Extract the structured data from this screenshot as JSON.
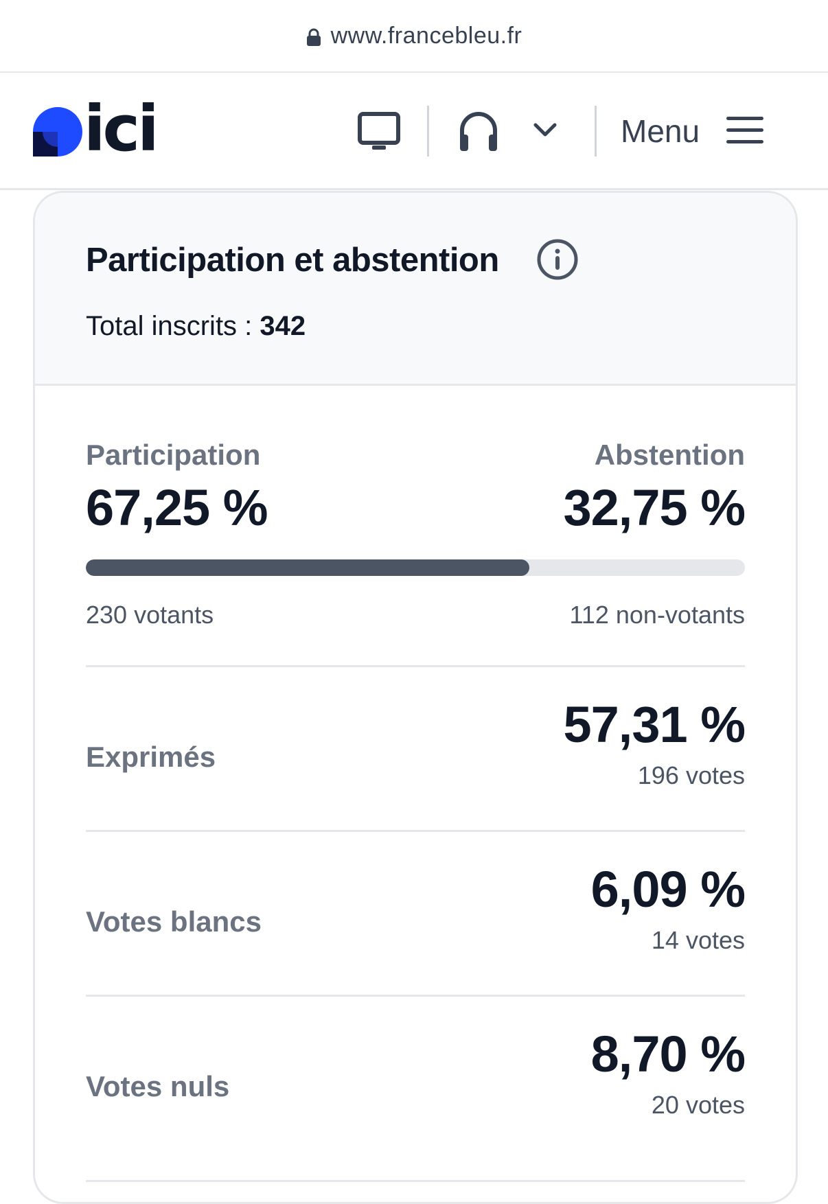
{
  "browser": {
    "url": "www.francebleu.fr",
    "lock_icon": "lock-icon"
  },
  "header": {
    "logo_text": "ici",
    "logo_color": "#1e4bff",
    "menu_label": "Menu",
    "icons": [
      "tv-icon",
      "headphones-icon",
      "chevron-down-icon",
      "hamburger-icon"
    ]
  },
  "card": {
    "title": "Participation et abstention",
    "total_label": "Total inscrits :",
    "total_value": "342",
    "participation": {
      "label": "Participation",
      "value": "67,25 %",
      "count": "230 votants",
      "fraction": 0.6725
    },
    "abstention": {
      "label": "Abstention",
      "value": "32,75 %",
      "count": "112 non-votants"
    },
    "rows": [
      {
        "label": "Exprimés",
        "value": "57,31 %",
        "count": "196 votes"
      },
      {
        "label": "Votes blancs",
        "value": "6,09 %",
        "count": "14 votes"
      },
      {
        "label": "Votes nuls",
        "value": "8,70 %",
        "count": "20 votes"
      }
    ]
  },
  "colors": {
    "bar_fill": "#4b5563",
    "bar_track": "#e5e7eb",
    "header_bg": "#f8f9fb"
  }
}
